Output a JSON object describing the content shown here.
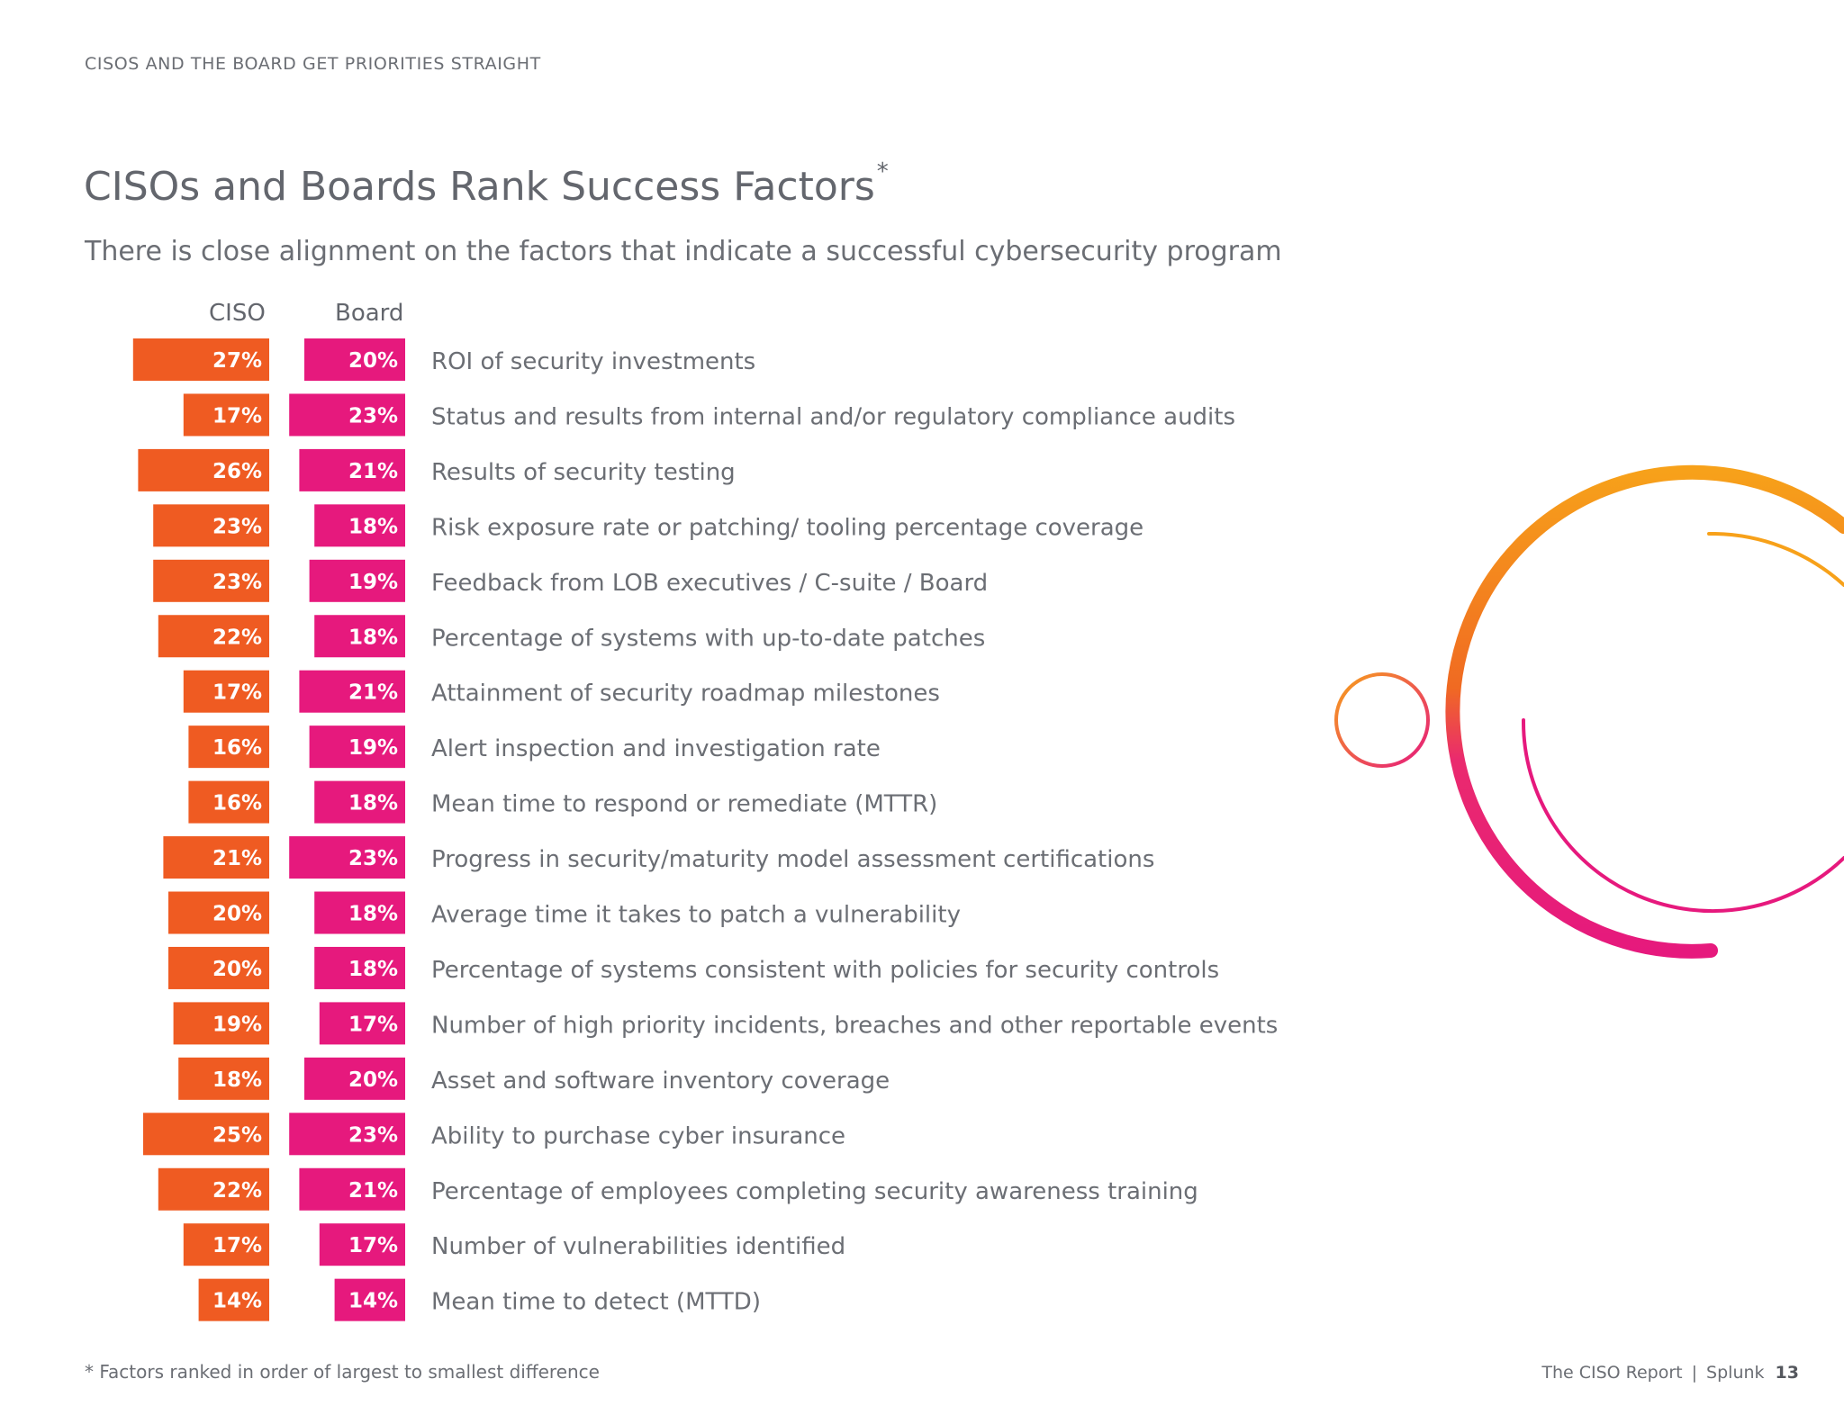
{
  "header": {
    "section_label": "CISOS AND THE BOARD GET PRIORITIES STRAIGHT"
  },
  "title": "CISOs and Boards Rank Success Factors",
  "title_mark": "*",
  "subtitle": "There is close alignment on the factors that indicate a successful cybersecurity program",
  "colors": {
    "ciso": "#ef5b22",
    "board": "#e6197d",
    "text": "#6b6e74",
    "accent_orange": "#f7a11a",
    "accent_pink": "#e6197d"
  },
  "chart_data": {
    "type": "bar",
    "orientation": "horizontal",
    "columns": [
      "CISO",
      "Board"
    ],
    "categories": [
      "ROI of security investments",
      "Status and results from internal and/or regulatory compliance audits",
      "Results of security testing",
      "Risk exposure rate or patching/ tooling percentage coverage",
      "Feedback from LOB executives / C-suite / Board",
      "Percentage of systems with up-to-date patches",
      "Attainment of security roadmap milestones",
      "Alert inspection and investigation rate",
      "Mean time to respond or remediate (MTTR)",
      "Progress in security/maturity model assessment certifications",
      "Average time it takes to patch a vulnerability",
      "Percentage of systems consistent with policies for security controls",
      "Number of high priority incidents, breaches and other reportable events",
      "Asset and software inventory coverage",
      "Ability to purchase cyber insurance",
      "Percentage of employees completing security awareness training",
      "Number of vulnerabilities identified",
      "Mean time to detect (MTTD)"
    ],
    "series": [
      {
        "name": "CISO",
        "values": [
          27,
          17,
          26,
          23,
          23,
          22,
          17,
          16,
          16,
          21,
          20,
          20,
          19,
          18,
          25,
          22,
          17,
          14
        ]
      },
      {
        "name": "Board",
        "values": [
          20,
          23,
          21,
          18,
          19,
          18,
          21,
          19,
          18,
          23,
          18,
          18,
          17,
          20,
          23,
          21,
          17,
          14
        ]
      }
    ],
    "value_suffix": "%",
    "bar_alignment": "right-aligned",
    "legend": "column headers above bars"
  },
  "footnote": "* Factors ranked in order of largest to smallest difference",
  "footer": {
    "report": "The CISO Report",
    "separator": "|",
    "brand": "Splunk",
    "page": "13"
  }
}
